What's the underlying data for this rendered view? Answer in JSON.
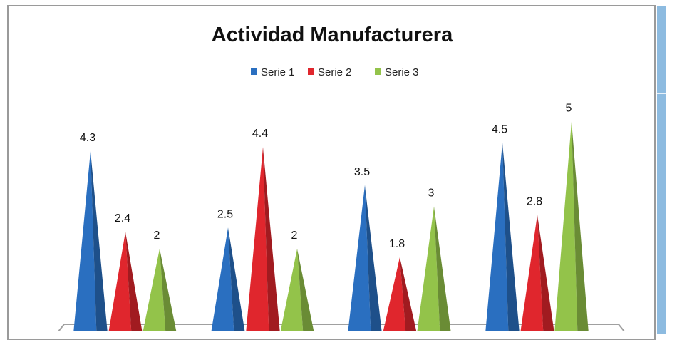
{
  "chart_data": {
    "type": "bar",
    "style": "3d-cone",
    "title": "Actividad Manufacturera",
    "categories": [
      "",
      "",
      "",
      ""
    ],
    "series": [
      {
        "name": "Serie 1",
        "color": "#2a6fc0",
        "values": [
          4.3,
          2.5,
          3.5,
          4.5
        ]
      },
      {
        "name": "Serie 2",
        "color": "#e0262d",
        "values": [
          2.4,
          4.4,
          1.8,
          2.8
        ]
      },
      {
        "name": "Serie 3",
        "color": "#93c34a",
        "values": [
          2,
          2,
          3,
          5
        ]
      }
    ],
    "legend_position": "top",
    "ylim": [
      0,
      5
    ],
    "grid": false
  }
}
